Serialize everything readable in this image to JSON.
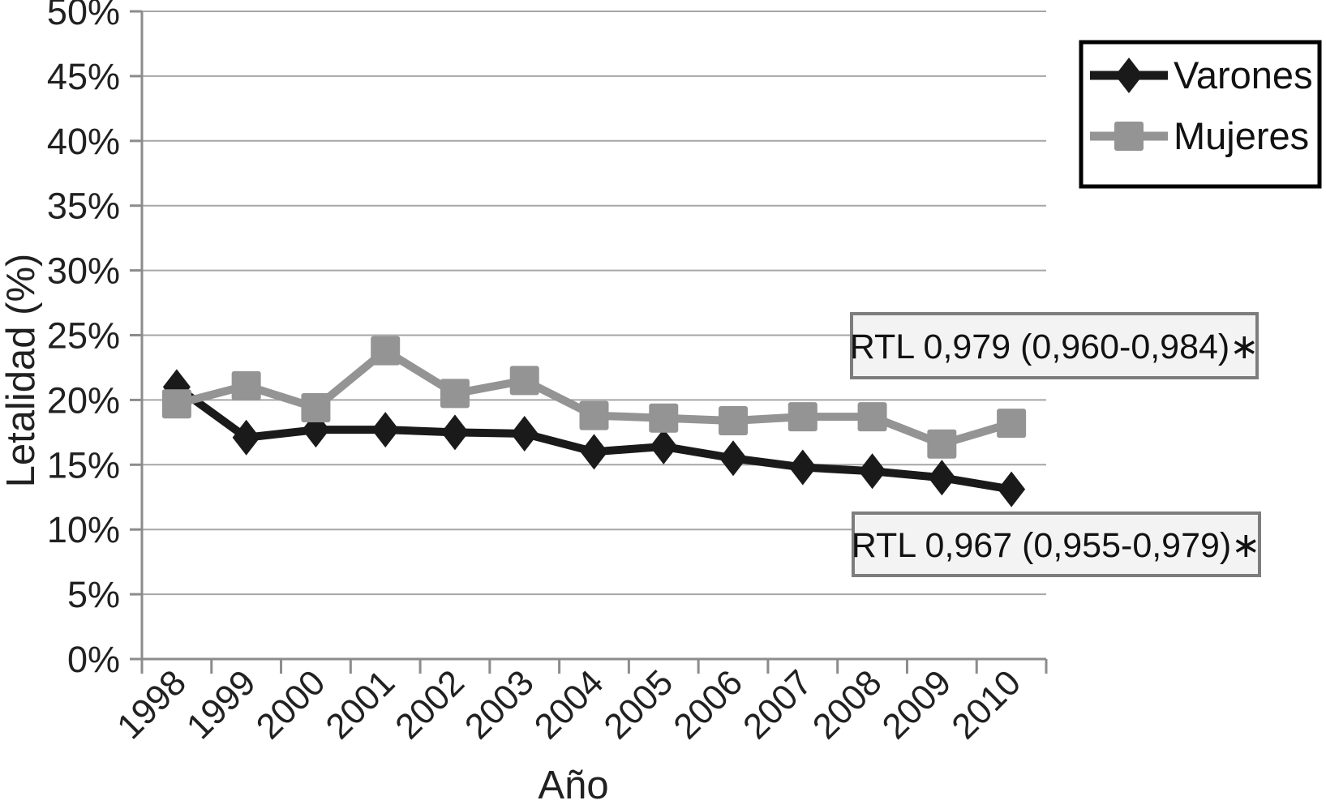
{
  "figure": {
    "background": "#ffffff",
    "gridline_color": "#a6a6a6",
    "axis_color": "#8c8c8c",
    "annotation_box_fill": "#f3f3f3",
    "annotation_box_border": "#7d7d7d"
  },
  "chart_data": {
    "type": "line",
    "title": "",
    "xlabel": "Año",
    "ylabel": "Letalidad (%)",
    "categories": [
      "1998",
      "1999",
      "2000",
      "2001",
      "2002",
      "2003",
      "2004",
      "2005",
      "2006",
      "2007",
      "2008",
      "2009",
      "2010"
    ],
    "series": [
      {
        "name": "Varones",
        "marker": "diamond",
        "color": "#1a1a1a",
        "values": [
          21.0,
          17.1,
          17.7,
          17.7,
          17.5,
          17.4,
          16.0,
          16.4,
          15.5,
          14.8,
          14.5,
          14.0,
          13.1
        ]
      },
      {
        "name": "Mujeres",
        "marker": "square",
        "color": "#949494",
        "values": [
          19.7,
          21.1,
          19.4,
          23.8,
          20.5,
          21.5,
          18.8,
          18.6,
          18.4,
          18.7,
          18.7,
          16.6,
          18.2
        ]
      }
    ],
    "ylim": [
      0,
      50
    ],
    "y_tick_step": 5,
    "y_tick_labels": [
      "0%",
      "5%",
      "10%",
      "15%",
      "20%",
      "25%",
      "30%",
      "35%",
      "40%",
      "45%",
      "50%"
    ],
    "grid": true,
    "legend_position": "top-right",
    "annotations": [
      {
        "text": "RTL 0,979 (0,960-0,984)∗",
        "series": "Mujeres"
      },
      {
        "text": "RTL 0,967 (0,955-0,979)∗",
        "series": "Varones"
      }
    ]
  }
}
